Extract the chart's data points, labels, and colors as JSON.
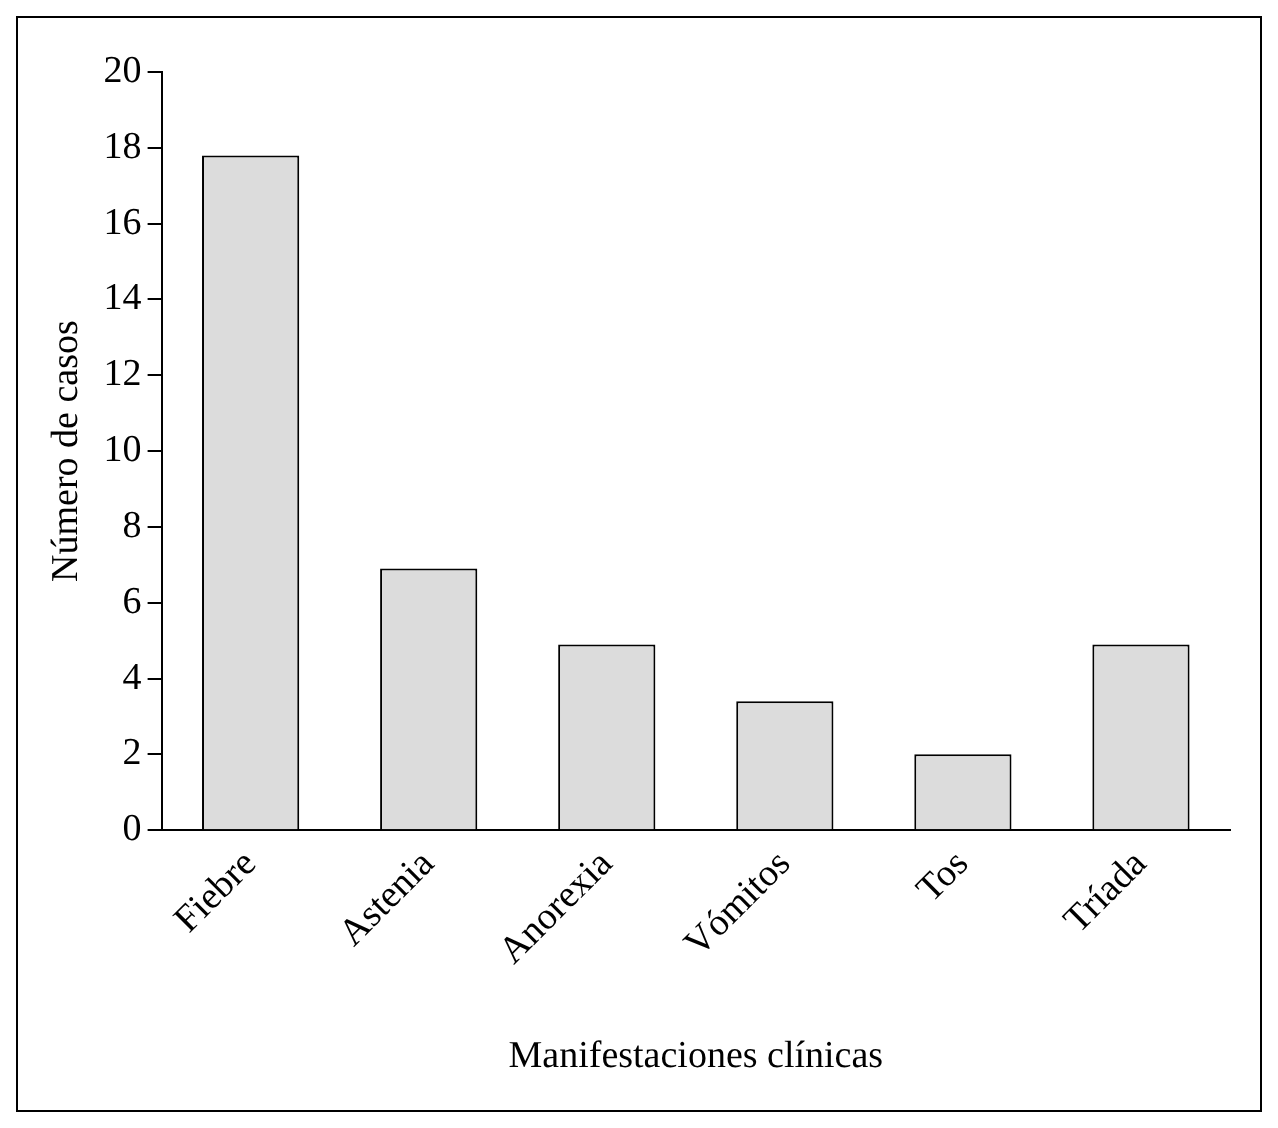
{
  "chart_data": {
    "type": "bar",
    "xlabel": "Manifestaciones clínicas",
    "ylabel": "Número de casos",
    "categories": [
      "Fiebre",
      "Astenia",
      "Anorexia",
      "Vómitos",
      "Tos",
      "Tríada"
    ],
    "values": [
      17.8,
      6.9,
      4.9,
      3.4,
      2,
      4.9
    ],
    "color": "#dcdcdc",
    "ylim": [
      0,
      20
    ],
    "yticks": [
      0,
      2,
      4,
      6,
      8,
      10,
      12,
      14,
      16,
      18,
      20
    ],
    "grid": false,
    "legend": false
  }
}
